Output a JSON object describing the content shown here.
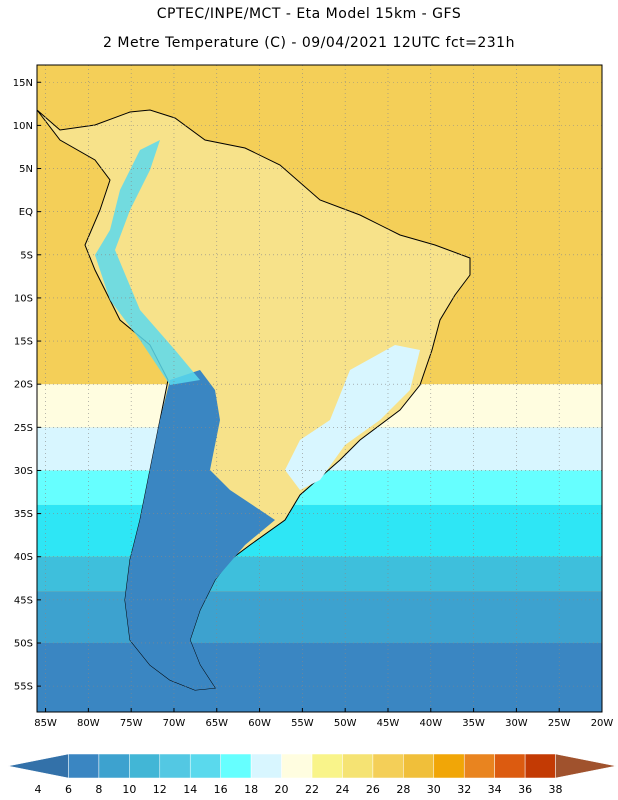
{
  "header": {
    "line1": "CPTEC/INPE/MCT -  Eta Model 15km - GFS",
    "line2": "2 Metre Temperature (C) - 09/04/2021 12UTC fct=231h"
  },
  "map": {
    "lat_range": [
      -58,
      17
    ],
    "lon_range": [
      -86,
      -20
    ],
    "lat_ticks": [
      {
        "value": 15,
        "label": "15N"
      },
      {
        "value": 10,
        "label": "10N"
      },
      {
        "value": 5,
        "label": "5N"
      },
      {
        "value": 0,
        "label": "EQ"
      },
      {
        "value": -5,
        "label": "5S"
      },
      {
        "value": -10,
        "label": "10S"
      },
      {
        "value": -15,
        "label": "15S"
      },
      {
        "value": -20,
        "label": "20S"
      },
      {
        "value": -25,
        "label": "25S"
      },
      {
        "value": -30,
        "label": "30S"
      },
      {
        "value": -35,
        "label": "35S"
      },
      {
        "value": -40,
        "label": "40S"
      },
      {
        "value": -45,
        "label": "45S"
      },
      {
        "value": -50,
        "label": "50S"
      },
      {
        "value": -55,
        "label": "55S"
      }
    ],
    "lon_ticks": [
      {
        "value": -85,
        "label": "85W"
      },
      {
        "value": -80,
        "label": "80W"
      },
      {
        "value": -75,
        "label": "75W"
      },
      {
        "value": -70,
        "label": "70W"
      },
      {
        "value": -65,
        "label": "65W"
      },
      {
        "value": -60,
        "label": "60W"
      },
      {
        "value": -55,
        "label": "55W"
      },
      {
        "value": -50,
        "label": "50W"
      },
      {
        "value": -45,
        "label": "45W"
      },
      {
        "value": -40,
        "label": "40W"
      },
      {
        "value": -35,
        "label": "35W"
      },
      {
        "value": -30,
        "label": "30W"
      },
      {
        "value": -25,
        "label": "25W"
      },
      {
        "value": -20,
        "label": "20W"
      }
    ],
    "bands": [
      {
        "lat": -25,
        "color": "#fffde0"
      },
      {
        "lat": -30,
        "color": "#d8f6ff"
      },
      {
        "lat": -34,
        "color": "#66ffff"
      },
      {
        "lat": -40,
        "color": "#2ee6f5"
      },
      {
        "lat": -44,
        "color": "#3ebfdc"
      },
      {
        "lat": -50,
        "color": "#3da2cf"
      },
      {
        "lat": -58,
        "color": "#3a86c2"
      }
    ],
    "north_color": "#f4cf58",
    "cold_color": "#2f6fae",
    "land_warm_color": "#f7e28a"
  },
  "colorbar": {
    "colors": [
      "#3371a9",
      "#3a86c2",
      "#3da2cf",
      "#42b6d6",
      "#53c8e3",
      "#5ad9ed",
      "#66ffff",
      "#d8f6ff",
      "#fffde0",
      "#f9f48a",
      "#f5e373",
      "#f4cf58",
      "#f0bf3a",
      "#f1a607",
      "#e9841f",
      "#dc5b10",
      "#c33a04",
      "#a0522d"
    ],
    "labels": [
      "4",
      "6",
      "8",
      "10",
      "12",
      "14",
      "16",
      "18",
      "20",
      "22",
      "24",
      "26",
      "28",
      "30",
      "32",
      "34",
      "36",
      "38"
    ]
  }
}
